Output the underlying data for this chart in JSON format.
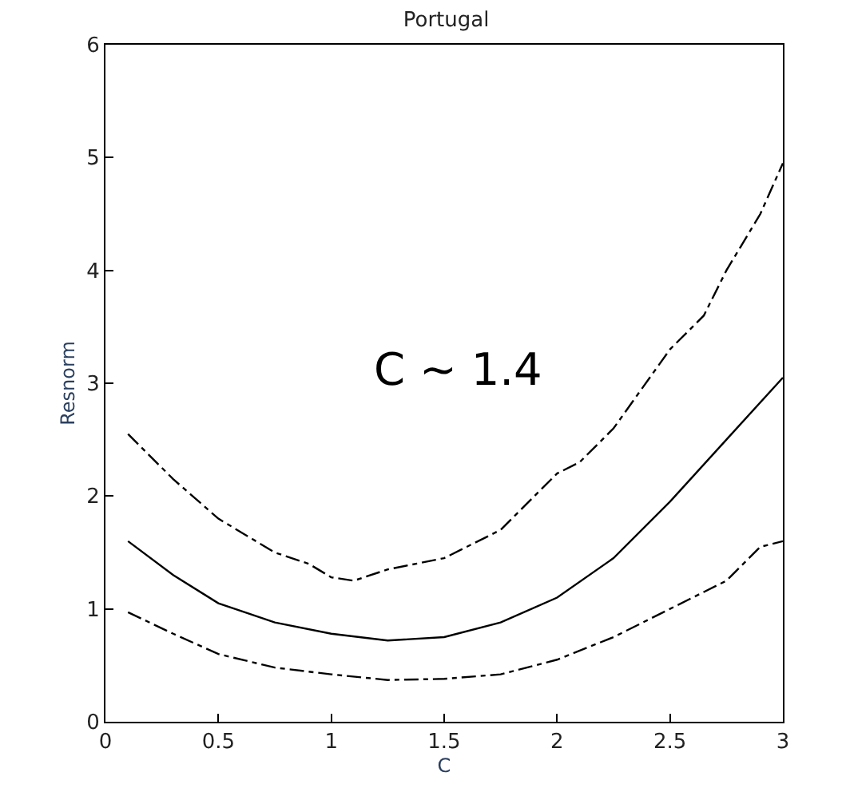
{
  "chart_data": {
    "type": "line",
    "title": "Portugal",
    "xlabel": "C",
    "ylabel": "Resnorm",
    "xlim": [
      0,
      3
    ],
    "ylim": [
      0,
      6
    ],
    "xticks": [
      0,
      0.5,
      1,
      1.5,
      2,
      2.5,
      3
    ],
    "yticks": [
      0,
      1,
      2,
      3,
      4,
      5,
      6
    ],
    "marker": "none",
    "annotations": [
      "C ~ 1.4"
    ],
    "series": [
      {
        "color": "#000000",
        "line_style": "dashdot",
        "x": [
          0.1,
          0.3,
          0.5,
          0.75,
          0.9,
          1.0,
          1.1,
          1.25,
          1.5,
          1.75,
          2.0,
          2.1,
          2.25,
          2.5,
          2.65,
          2.75,
          2.9,
          3.0
        ],
        "values": [
          2.55,
          2.15,
          1.8,
          1.5,
          1.4,
          1.28,
          1.25,
          1.35,
          1.45,
          1.7,
          2.2,
          2.3,
          2.6,
          3.3,
          3.6,
          4.0,
          4.5,
          4.95
        ]
      },
      {
        "color": "#000000",
        "line_style": "solid",
        "x": [
          0.1,
          0.3,
          0.5,
          0.75,
          1.0,
          1.25,
          1.5,
          1.75,
          2.0,
          2.25,
          2.5,
          2.75,
          3.0
        ],
        "values": [
          1.6,
          1.3,
          1.05,
          0.88,
          0.78,
          0.72,
          0.75,
          0.88,
          1.1,
          1.45,
          1.95,
          2.5,
          3.05
        ]
      },
      {
        "color": "#000000",
        "line_style": "dashdot",
        "x": [
          0.1,
          0.3,
          0.5,
          0.75,
          1.0,
          1.25,
          1.5,
          1.75,
          2.0,
          2.25,
          2.5,
          2.75,
          2.9,
          3.0
        ],
        "values": [
          0.97,
          0.78,
          0.6,
          0.48,
          0.42,
          0.37,
          0.38,
          0.42,
          0.55,
          0.75,
          1.0,
          1.25,
          1.55,
          1.6
        ]
      }
    ]
  }
}
